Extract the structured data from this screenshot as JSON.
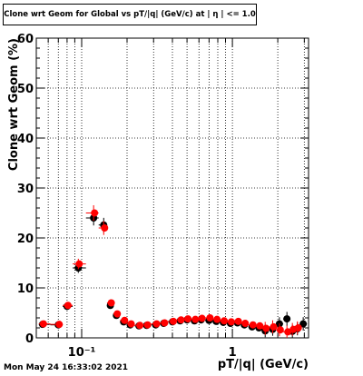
{
  "chart_data": {
    "type": "scatter",
    "title": "Clone wrt Geom for Global vs pT/|q| (GeV/c) at | η | <= 1.0",
    "xlabel": "pT/|q| (GeV/c)",
    "ylabel": "Clone wrt Geom (%)",
    "xscale": "log",
    "xlim": [
      0.05,
      3.2
    ],
    "ylim": [
      0,
      60
    ],
    "grid": true,
    "y_ticks": [
      0,
      10,
      20,
      30,
      40,
      50,
      60
    ],
    "y_tick_labels": [
      "0",
      "10",
      "20",
      "30",
      "40",
      "50",
      "60"
    ],
    "x_ticks": [
      0.1,
      1
    ],
    "x_tick_labels": [
      "10⁻¹",
      "1"
    ],
    "colors": {
      "series_1": "#000000",
      "series_2": "#ff0000"
    },
    "series": [
      {
        "color": "#000000",
        "points": [
          {
            "x": 0.055,
            "y": 2.7
          },
          {
            "x": 0.07,
            "y": 2.6
          },
          {
            "x": 0.08,
            "y": 6.3
          },
          {
            "x": 0.095,
            "y": 14.0
          },
          {
            "x": 0.12,
            "y": 24.0
          },
          {
            "x": 0.14,
            "y": 22.6
          },
          {
            "x": 0.155,
            "y": 6.5
          },
          {
            "x": 0.17,
            "y": 4.5
          },
          {
            "x": 0.19,
            "y": 3.2
          },
          {
            "x": 0.21,
            "y": 2.6
          },
          {
            "x": 0.24,
            "y": 2.4
          },
          {
            "x": 0.27,
            "y": 2.5
          },
          {
            "x": 0.31,
            "y": 2.6
          },
          {
            "x": 0.35,
            "y": 2.9
          },
          {
            "x": 0.4,
            "y": 3.2
          },
          {
            "x": 0.45,
            "y": 3.4
          },
          {
            "x": 0.5,
            "y": 3.6
          },
          {
            "x": 0.56,
            "y": 3.4
          },
          {
            "x": 0.62,
            "y": 3.6
          },
          {
            "x": 0.7,
            "y": 3.5
          },
          {
            "x": 0.78,
            "y": 3.3
          },
          {
            "x": 0.87,
            "y": 3.1
          },
          {
            "x": 0.97,
            "y": 2.9
          },
          {
            "x": 1.08,
            "y": 3.0
          },
          {
            "x": 1.2,
            "y": 2.6
          },
          {
            "x": 1.35,
            "y": 2.2
          },
          {
            "x": 1.5,
            "y": 2.0
          },
          {
            "x": 1.65,
            "y": 1.4
          },
          {
            "x": 1.85,
            "y": 1.7
          },
          {
            "x": 2.05,
            "y": 2.8
          },
          {
            "x": 2.3,
            "y": 3.8
          },
          {
            "x": 2.5,
            "y": 1.3
          },
          {
            "x": 2.7,
            "y": 1.8
          },
          {
            "x": 2.95,
            "y": 2.8
          }
        ]
      },
      {
        "color": "#ff0000",
        "points": [
          {
            "x": 0.055,
            "y": 2.8
          },
          {
            "x": 0.07,
            "y": 2.7
          },
          {
            "x": 0.08,
            "y": 6.5
          },
          {
            "x": 0.095,
            "y": 14.8
          },
          {
            "x": 0.12,
            "y": 25.0
          },
          {
            "x": 0.14,
            "y": 22.0
          },
          {
            "x": 0.155,
            "y": 7.0
          },
          {
            "x": 0.17,
            "y": 4.8
          },
          {
            "x": 0.19,
            "y": 3.5
          },
          {
            "x": 0.21,
            "y": 2.8
          },
          {
            "x": 0.24,
            "y": 2.5
          },
          {
            "x": 0.27,
            "y": 2.6
          },
          {
            "x": 0.31,
            "y": 2.8
          },
          {
            "x": 0.35,
            "y": 3.0
          },
          {
            "x": 0.4,
            "y": 3.3
          },
          {
            "x": 0.45,
            "y": 3.6
          },
          {
            "x": 0.5,
            "y": 3.8
          },
          {
            "x": 0.56,
            "y": 3.7
          },
          {
            "x": 0.62,
            "y": 3.9
          },
          {
            "x": 0.7,
            "y": 4.0
          },
          {
            "x": 0.78,
            "y": 3.7
          },
          {
            "x": 0.87,
            "y": 3.4
          },
          {
            "x": 0.97,
            "y": 3.2
          },
          {
            "x": 1.08,
            "y": 3.3
          },
          {
            "x": 1.2,
            "y": 2.9
          },
          {
            "x": 1.35,
            "y": 2.6
          },
          {
            "x": 1.5,
            "y": 2.4
          },
          {
            "x": 1.65,
            "y": 1.9
          },
          {
            "x": 1.85,
            "y": 2.2
          },
          {
            "x": 2.05,
            "y": 1.6
          },
          {
            "x": 2.3,
            "y": 1.2
          },
          {
            "x": 2.5,
            "y": 1.7
          },
          {
            "x": 2.7,
            "y": 2.0
          }
        ]
      }
    ]
  },
  "footer": {
    "timestamp": "Mon May 24 16:33:02 2021"
  }
}
